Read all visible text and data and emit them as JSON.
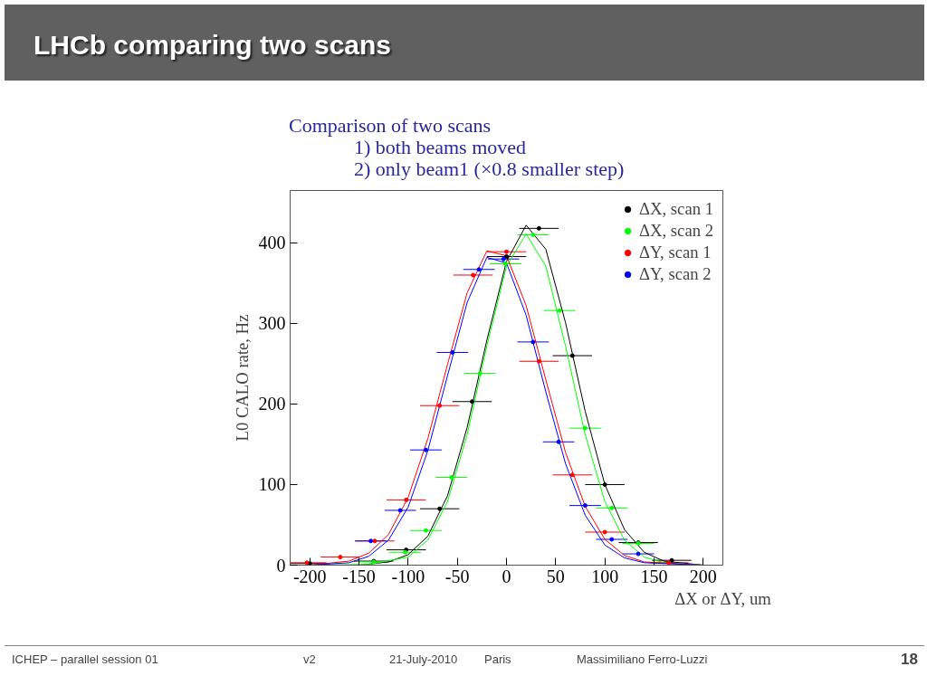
{
  "chart_data": {
    "type": "scatter",
    "title": "LHCb comparing two scans",
    "subtitle": "Comparison of two scans",
    "xlabel": "ΔX or ΔY, um",
    "ylabel": "L0 CALO rate, Hz",
    "annotations": [
      "1) both beams moved",
      "2) only beam1 (×0.8 smaller step)",
      "ICHEP – parallel session 01",
      "v2",
      "21-July-2010",
      "Paris",
      "Massimiliano Ferro-Luzzi",
      "18"
    ],
    "xlim": [
      -220,
      220
    ],
    "ylim": [
      0,
      465
    ],
    "xticks": [
      -200,
      -150,
      -100,
      -50,
      0,
      50,
      100,
      150,
      200
    ],
    "yticks": [
      0,
      100,
      200,
      300,
      400
    ],
    "grid": false,
    "legend": "top right",
    "series": [
      {
        "name": "ΔX, scan 1",
        "color": "#000000",
        "x": [
          -200,
          -135,
          -102,
          -68,
          -35,
          0,
          33,
          67,
          100,
          134,
          168
        ],
        "values": [
          2,
          5,
          19,
          70,
          203,
          383,
          418,
          260,
          100,
          28,
          6
        ],
        "marker": "circle",
        "xerrors": [
          20,
          20,
          20,
          20,
          20,
          20,
          20,
          20,
          20,
          20,
          20
        ]
      },
      {
        "name": "ΔX, scan 2",
        "color": "#00ff00",
        "x": [
          -135,
          -103,
          -82,
          -56,
          -27,
          -1,
          27,
          54,
          80,
          107,
          134
        ],
        "values": [
          4,
          16,
          43,
          109,
          238,
          374,
          410,
          316,
          170,
          71,
          27
        ],
        "marker": "circle",
        "xerrors": [
          16,
          16,
          16,
          16,
          16,
          16,
          16,
          16,
          16,
          16,
          16
        ]
      },
      {
        "name": "ΔY, scan 1",
        "color": "#ff0000",
        "x": [
          -203,
          -169,
          -134,
          -102,
          -68,
          -34,
          0,
          33,
          67,
          100,
          165
        ],
        "values": [
          3,
          10,
          30,
          81,
          198,
          360,
          389,
          253,
          112,
          41,
          3
        ],
        "marker": "circle",
        "xerrors": [
          20,
          20,
          20,
          20,
          20,
          20,
          20,
          20,
          20,
          20,
          20
        ]
      },
      {
        "name": "ΔY, scan 2",
        "color": "#0000ff",
        "x": [
          -138,
          -108,
          -82,
          -55,
          -28,
          -3,
          27,
          53,
          80,
          107,
          134
        ],
        "values": [
          30,
          68,
          143,
          264,
          367,
          380,
          277,
          153,
          74,
          32,
          14
        ],
        "marker": "circle",
        "xerrors": [
          16,
          16,
          16,
          16,
          16,
          16,
          16,
          16,
          16,
          16,
          16
        ]
      },
      {
        "type": "line",
        "color": "#000000",
        "x": [
          -200,
          -150,
          -120,
          -100,
          -80,
          -60,
          -40,
          -20,
          0,
          20,
          40,
          60,
          80,
          100,
          120,
          140,
          160,
          200
        ],
        "values": [
          0,
          0,
          4,
          13,
          36,
          86,
          171,
          279,
          377,
          422,
          392,
          301,
          191,
          100,
          44,
          16,
          5,
          0
        ]
      },
      {
        "type": "line",
        "color": "#00ff00",
        "x": [
          -200,
          -140,
          -100,
          -80,
          -60,
          -40,
          -20,
          0,
          20,
          40,
          60,
          80,
          100,
          120,
          140,
          160,
          200
        ],
        "values": [
          0,
          1,
          10,
          31,
          79,
          162,
          272,
          371,
          411,
          371,
          272,
          162,
          79,
          31,
          10,
          3,
          0
        ]
      },
      {
        "type": "line",
        "color": "#ff0000",
        "x": [
          -220,
          -200,
          -160,
          -140,
          -120,
          -100,
          -80,
          -60,
          -40,
          -20,
          0,
          20,
          40,
          60,
          80,
          100,
          120,
          140,
          200,
          220
        ],
        "values": [
          0,
          0,
          5,
          15,
          38,
          84,
          157,
          249,
          338,
          390,
          384,
          322,
          230,
          140,
          73,
          32,
          12,
          4,
          0,
          0
        ]
      },
      {
        "type": "line",
        "color": "#0000ff",
        "x": [
          -200,
          -160,
          -140,
          -120,
          -100,
          -80,
          -60,
          -40,
          -20,
          0,
          20,
          40,
          60,
          80,
          100,
          120,
          140,
          200
        ],
        "values": [
          0,
          3,
          11,
          31,
          72,
          142,
          235,
          326,
          382,
          375,
          310,
          215,
          126,
          62,
          25,
          9,
          3,
          0
        ]
      }
    ]
  }
}
